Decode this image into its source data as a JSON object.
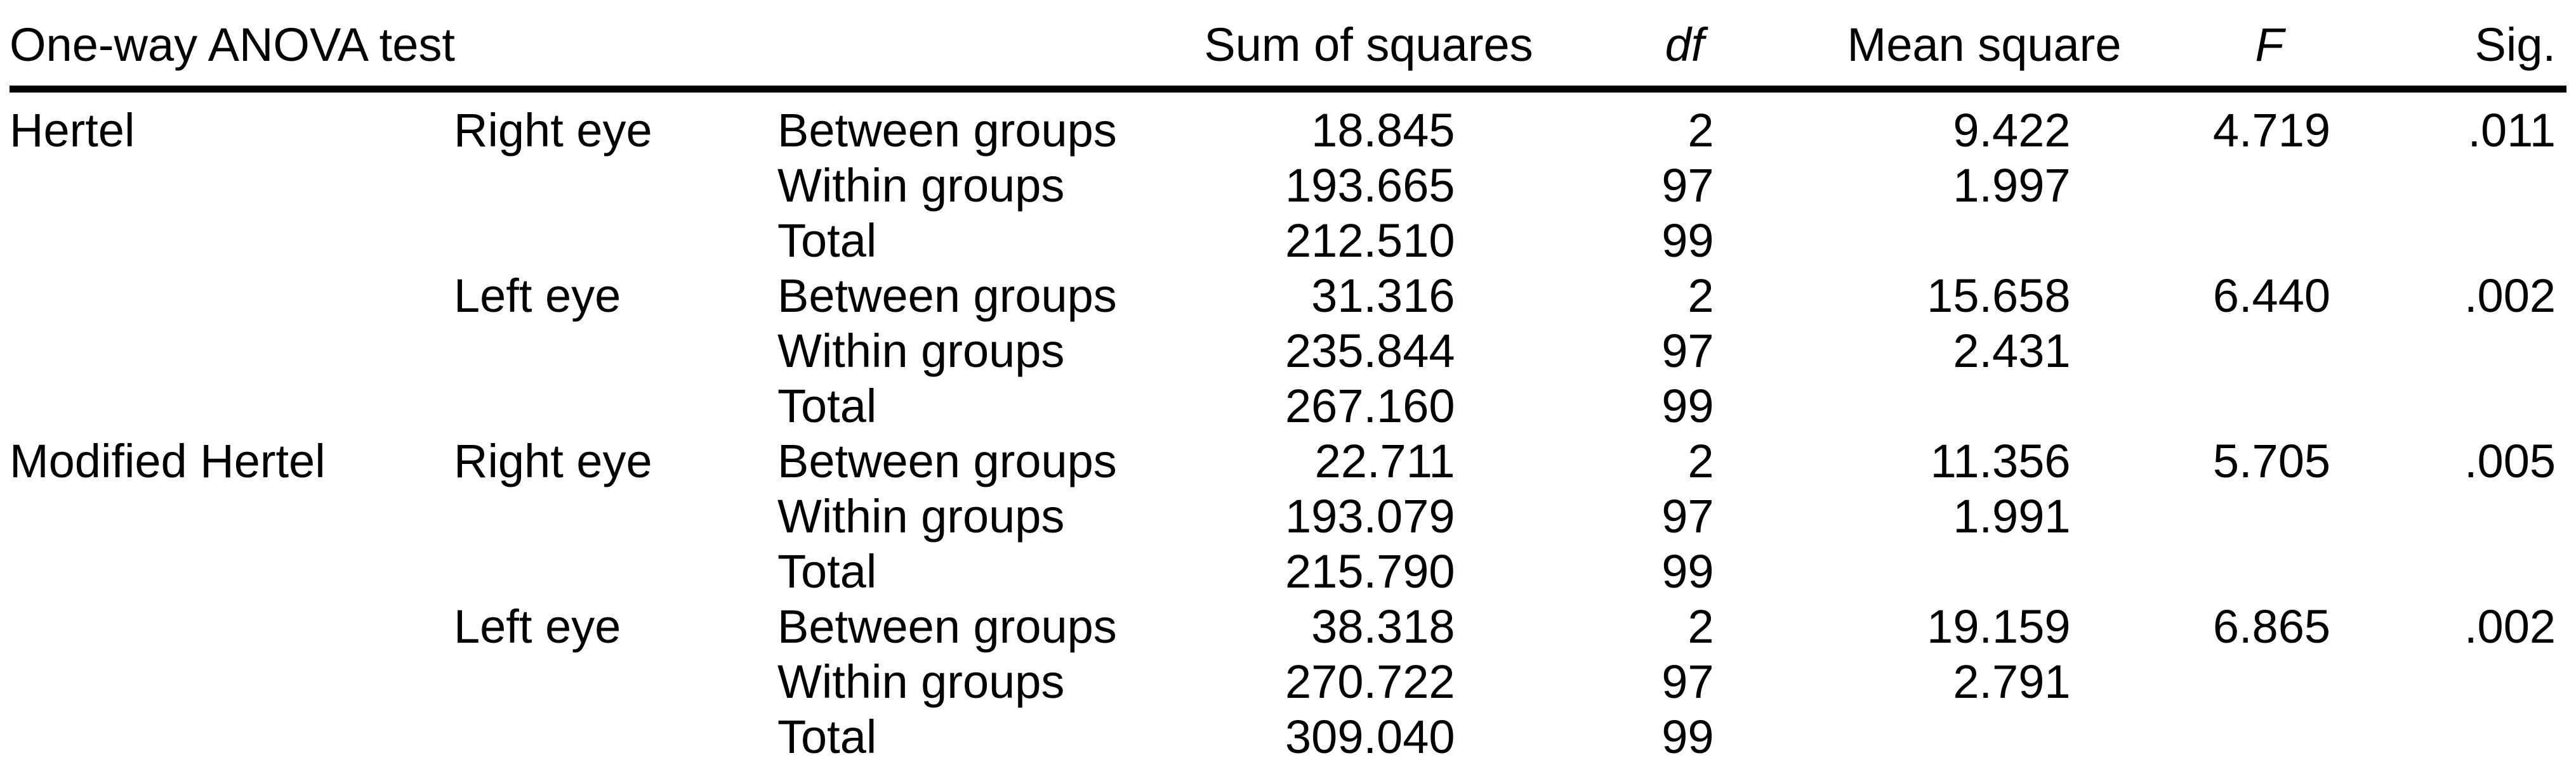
{
  "table": {
    "title": "One-way ANOVA test",
    "headers": {
      "sum_of_squares": "Sum of squares",
      "df": "df",
      "mean_square": "Mean square",
      "f": "F",
      "sig": "Sig."
    },
    "rows": [
      {
        "factor": "Hertel",
        "eye": "Right eye",
        "source": "Between groups",
        "ss": "18.845",
        "df": "2",
        "ms": "9.422",
        "f": "4.719",
        "sig": ".011"
      },
      {
        "source": "Within groups",
        "ss": "193.665",
        "df": "97",
        "ms": "1.997"
      },
      {
        "source": "Total",
        "ss": "212.510",
        "df": "99"
      },
      {
        "eye": "Left eye",
        "source": "Between groups",
        "ss": "31.316",
        "df": "2",
        "ms": "15.658",
        "f": "6.440",
        "sig": ".002"
      },
      {
        "source": "Within groups",
        "ss": "235.844",
        "df": "97",
        "ms": "2.431"
      },
      {
        "source": "Total",
        "ss": "267.160",
        "df": "99"
      },
      {
        "factor": "Modified Hertel",
        "eye": "Right eye",
        "source": "Between groups",
        "ss": "22.711",
        "df": "2",
        "ms": "11.356",
        "f": "5.705",
        "sig": ".005"
      },
      {
        "source": "Within groups",
        "ss": "193.079",
        "df": "97",
        "ms": "1.991"
      },
      {
        "source": "Total",
        "ss": "215.790",
        "df": "99"
      },
      {
        "eye": "Left eye",
        "source": "Between groups",
        "ss": "38.318",
        "df": "2",
        "ms": "19.159",
        "f": "6.865",
        "sig": ".002"
      },
      {
        "source": "Within groups",
        "ss": "270.722",
        "df": "97",
        "ms": "2.791"
      },
      {
        "source": "Total",
        "ss": "309.040",
        "df": "99"
      }
    ]
  }
}
